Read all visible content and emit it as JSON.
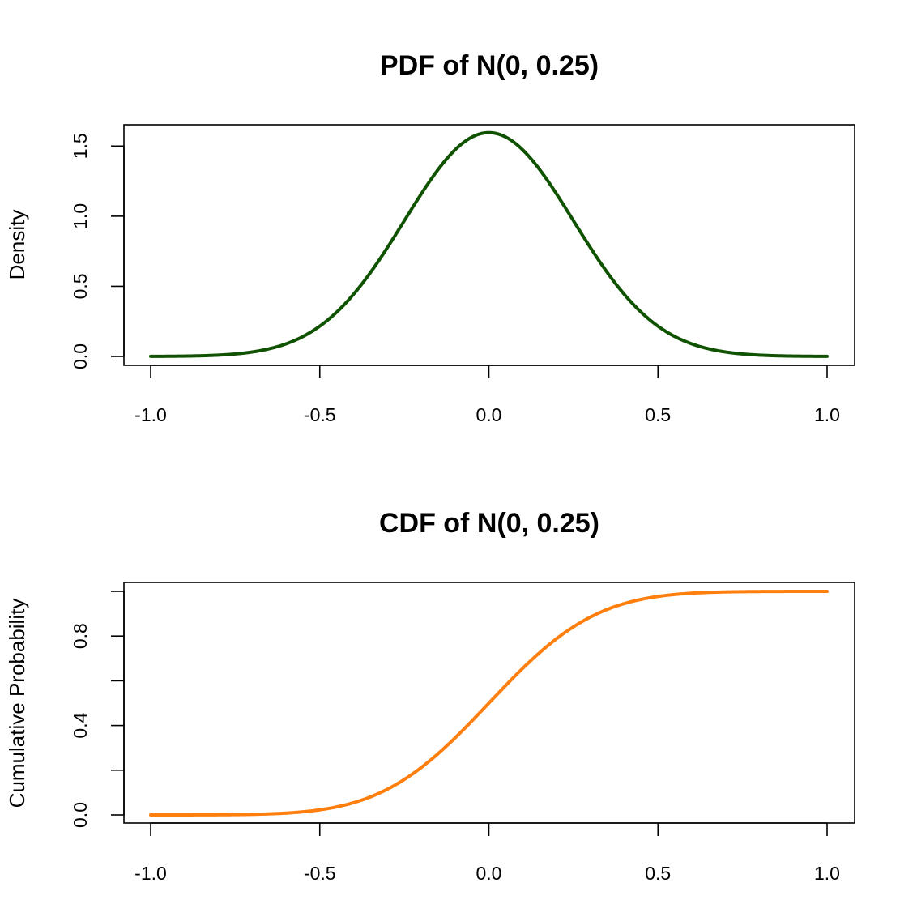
{
  "chart_data": [
    {
      "type": "line",
      "title": "PDF of N(0, 0.25)",
      "xlabel": "",
      "ylabel": "Density",
      "distribution": {
        "mean": 0,
        "sd": 0.25,
        "function": "pdf"
      },
      "xlim": [
        -1.0,
        1.0
      ],
      "ylim": [
        0,
        1.6
      ],
      "x_ticks": [
        -1.0,
        -0.5,
        0.0,
        0.5,
        1.0
      ],
      "x_tick_labels": [
        "-1.0",
        "-0.5",
        "0.0",
        "0.5",
        "1.0"
      ],
      "y_ticks": [
        0.0,
        0.5,
        1.0,
        1.5
      ],
      "y_tick_labels": [
        "0.0",
        "0.5",
        "1.0",
        "1.5"
      ],
      "series": [
        {
          "name": "Density",
          "color": "#0f5200",
          "x": [
            -1.0,
            -0.9,
            -0.8,
            -0.7,
            -0.6,
            -0.5,
            -0.4,
            -0.3,
            -0.2,
            -0.1,
            0.0,
            0.1,
            0.2,
            0.3,
            0.4,
            0.5,
            0.6,
            0.7,
            0.8,
            0.9,
            1.0
          ],
          "values": [
            0.0005,
            0.0024,
            0.0095,
            0.0317,
            0.0898,
            0.216,
            0.4436,
            0.7767,
            1.1588,
            1.4732,
            1.5958,
            1.4732,
            1.1588,
            0.7767,
            0.4436,
            0.216,
            0.0898,
            0.0317,
            0.0095,
            0.0024,
            0.0005
          ]
        }
      ]
    },
    {
      "type": "line",
      "title": "CDF of N(0, 0.25)",
      "xlabel": "",
      "ylabel": "Cumulative Probability",
      "distribution": {
        "mean": 0,
        "sd": 0.25,
        "function": "cdf"
      },
      "xlim": [
        -1.0,
        1.0
      ],
      "ylim": [
        0,
        1.0
      ],
      "x_ticks": [
        -1.0,
        -0.5,
        0.0,
        0.5,
        1.0
      ],
      "x_tick_labels": [
        "-1.0",
        "-0.5",
        "0.0",
        "0.5",
        "1.0"
      ],
      "y_ticks": [
        0.0,
        0.2,
        0.4,
        0.6,
        0.8,
        1.0
      ],
      "y_tick_labels": [
        "0.0",
        "",
        "0.4",
        "",
        "0.8",
        ""
      ],
      "series": [
        {
          "name": "Cumulative Probability",
          "color": "#ff7f0e",
          "x": [
            -1.0,
            -0.9,
            -0.8,
            -0.7,
            -0.6,
            -0.5,
            -0.4,
            -0.3,
            -0.2,
            -0.1,
            0.0,
            0.1,
            0.2,
            0.3,
            0.4,
            0.5,
            0.6,
            0.7,
            0.8,
            0.9,
            1.0
          ],
          "values": [
            0.0,
            0.0002,
            0.0007,
            0.0026,
            0.0082,
            0.0228,
            0.0548,
            0.1151,
            0.2119,
            0.3446,
            0.5,
            0.6554,
            0.7881,
            0.8849,
            0.9452,
            0.9772,
            0.9918,
            0.9974,
            0.9993,
            0.9998,
            1.0
          ]
        }
      ]
    }
  ]
}
